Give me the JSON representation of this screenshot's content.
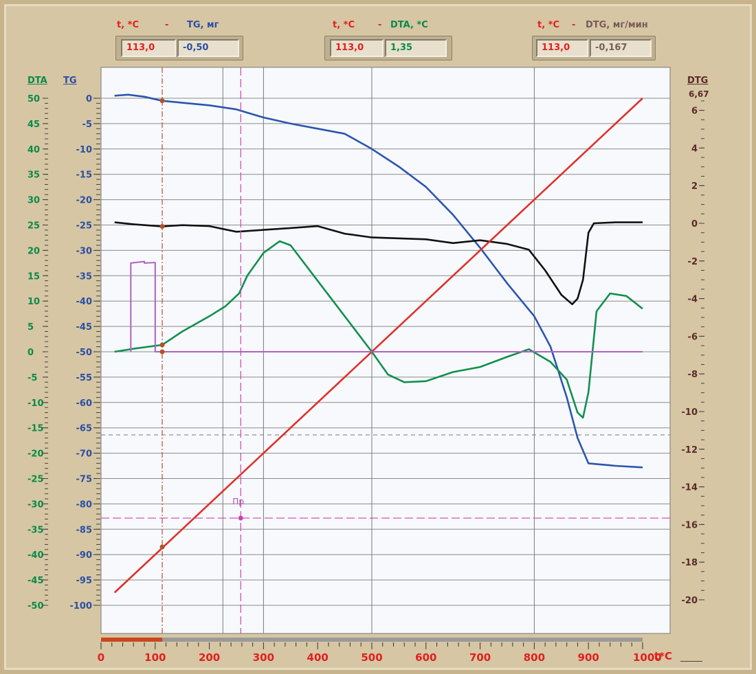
{
  "readouts": [
    {
      "t_label": "t, *C",
      "sep": "-",
      "q_label": "TG, мг",
      "t_value": "113,0",
      "q_value": "-0,50",
      "q_color": "#2b4fa3"
    },
    {
      "t_label": "t, *C",
      "sep": "-",
      "q_label": "DTA, *C",
      "t_value": "113,0",
      "q_value": "1,35",
      "q_color": "#0a8a4a"
    },
    {
      "t_label": "t, *C",
      "sep": "-",
      "q_label": "DTG, мг/мин",
      "t_value": "113,0",
      "q_value": "-0,167",
      "q_color": "#7a5a5a"
    }
  ],
  "axis_labels": {
    "dta": "DTA",
    "tg": "TG",
    "dtg": "DTG",
    "dtg_max": "6,67",
    "x": "t*C",
    "marker": "Пр"
  },
  "colors": {
    "tg": "#2b55b0",
    "dta": "#10904e",
    "dtg": "#111111",
    "temp": "#e0302a",
    "pulse": "#b060c0",
    "cursor": "#b5502a",
    "marker": "#d040b0"
  },
  "chart_data": {
    "type": "line",
    "x_label": "t*C",
    "xlim": [
      0,
      1000
    ],
    "x_ticks": [
      0,
      100,
      200,
      300,
      400,
      500,
      600,
      700,
      800,
      900,
      1000
    ],
    "axes": {
      "dta": {
        "range": [
          -50,
          50
        ],
        "ticks": [
          50,
          45,
          40,
          35,
          30,
          25,
          20,
          15,
          10,
          5,
          0,
          -5,
          -10,
          -15,
          -20,
          -25,
          -30,
          -35,
          -40,
          -45,
          -50
        ]
      },
      "tg": {
        "range": [
          -100,
          0
        ],
        "ticks": [
          0,
          -5,
          -10,
          -15,
          -20,
          -25,
          -30,
          -35,
          -40,
          -45,
          -50,
          -55,
          -60,
          -65,
          -70,
          -75,
          -80,
          -85,
          -90,
          -95,
          -100
        ]
      },
      "dtg": {
        "range": [
          -20,
          6.67
        ],
        "ticks": [
          6,
          4,
          2,
          0,
          -2,
          -4,
          -6,
          -8,
          -10,
          -12,
          -14,
          -16,
          -18,
          -20
        ]
      }
    },
    "cursor": {
      "x": 113,
      "tg": -0.5,
      "dta": 1.35,
      "dtg": -0.167
    },
    "marker": {
      "x": 258,
      "dta": -32.8
    },
    "series": [
      {
        "name": "TG",
        "axis": "tg",
        "points": [
          [
            25,
            0.5
          ],
          [
            50,
            0.7
          ],
          [
            80,
            0.3
          ],
          [
            113,
            -0.5
          ],
          [
            150,
            -0.9
          ],
          [
            200,
            -1.4
          ],
          [
            250,
            -2.2
          ],
          [
            300,
            -3.8
          ],
          [
            350,
            -5.0
          ],
          [
            400,
            -6.0
          ],
          [
            450,
            -7.0
          ],
          [
            500,
            -10.0
          ],
          [
            550,
            -13.5
          ],
          [
            600,
            -17.5
          ],
          [
            650,
            -23
          ],
          [
            700,
            -29.5
          ],
          [
            750,
            -36.5
          ],
          [
            800,
            -43
          ],
          [
            830,
            -49
          ],
          [
            860,
            -59
          ],
          [
            880,
            -67
          ],
          [
            900,
            -72
          ],
          [
            950,
            -72.5
          ],
          [
            1000,
            -72.8
          ]
        ]
      },
      {
        "name": "DTA",
        "axis": "dta",
        "points": [
          [
            25,
            0
          ],
          [
            60,
            0.6
          ],
          [
            113,
            1.35
          ],
          [
            150,
            4
          ],
          [
            200,
            7
          ],
          [
            230,
            9
          ],
          [
            255,
            11.5
          ],
          [
            270,
            15
          ],
          [
            300,
            19.5
          ],
          [
            330,
            21.8
          ],
          [
            350,
            21
          ],
          [
            400,
            14
          ],
          [
            450,
            7
          ],
          [
            500,
            0
          ],
          [
            530,
            -4.5
          ],
          [
            560,
            -6
          ],
          [
            600,
            -5.8
          ],
          [
            650,
            -4
          ],
          [
            700,
            -3
          ],
          [
            750,
            -1
          ],
          [
            790,
            0.5
          ],
          [
            830,
            -2
          ],
          [
            860,
            -5.5
          ],
          [
            880,
            -12
          ],
          [
            890,
            -13
          ],
          [
            900,
            -8
          ],
          [
            915,
            8
          ],
          [
            940,
            11.5
          ],
          [
            970,
            11
          ],
          [
            1000,
            8.5
          ]
        ]
      },
      {
        "name": "DTG",
        "axis": "dtg",
        "points": [
          [
            25,
            0.05
          ],
          [
            60,
            -0.05
          ],
          [
            113,
            -0.167
          ],
          [
            150,
            -0.1
          ],
          [
            200,
            -0.15
          ],
          [
            250,
            -0.45
          ],
          [
            300,
            -0.35
          ],
          [
            350,
            -0.25
          ],
          [
            400,
            -0.15
          ],
          [
            450,
            -0.55
          ],
          [
            500,
            -0.75
          ],
          [
            550,
            -0.8
          ],
          [
            600,
            -0.85
          ],
          [
            650,
            -1.05
          ],
          [
            700,
            -0.9
          ],
          [
            750,
            -1.1
          ],
          [
            790,
            -1.4
          ],
          [
            820,
            -2.5
          ],
          [
            850,
            -3.8
          ],
          [
            870,
            -4.3
          ],
          [
            880,
            -4.0
          ],
          [
            890,
            -3.0
          ],
          [
            900,
            -0.5
          ],
          [
            910,
            0.0
          ],
          [
            950,
            0.05
          ],
          [
            1000,
            0.05
          ]
        ]
      },
      {
        "name": "t",
        "axis": "tg",
        "points": [
          [
            25,
            -97.5
          ],
          [
            1000,
            0
          ]
        ]
      },
      {
        "name": "pulse",
        "axis": "dta",
        "points": [
          [
            55,
            0
          ],
          [
            55,
            17.5
          ],
          [
            80,
            17.8
          ],
          [
            80,
            17.5
          ],
          [
            100,
            17.6
          ],
          [
            100,
            0
          ],
          [
            1000,
            0
          ]
        ]
      }
    ]
  }
}
